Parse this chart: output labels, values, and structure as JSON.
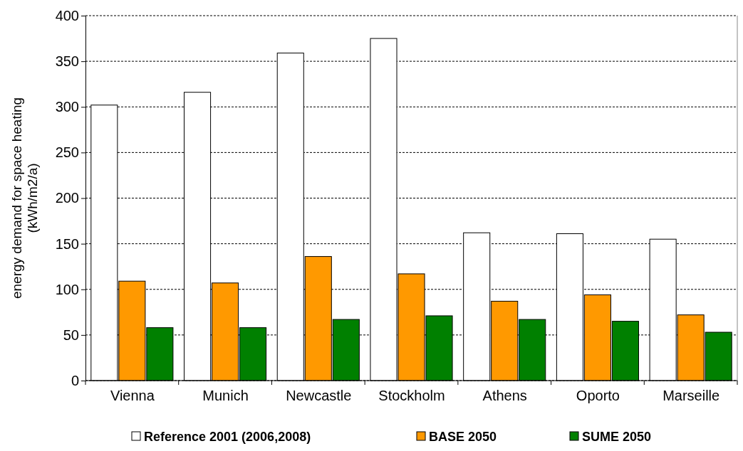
{
  "chart_data": {
    "type": "bar",
    "ylabel": "energy demand for space heating\n(kWh/m2/a)",
    "categories": [
      "Vienna",
      "Munich",
      "Newcastle",
      "Stockholm",
      "Athens",
      "Oporto",
      "Marseille"
    ],
    "series": [
      {
        "name": "Reference 2001 (2006,2008)",
        "color": "#ffffff",
        "values": [
          302,
          316,
          359,
          375,
          162,
          161,
          155
        ]
      },
      {
        "name": "BASE 2050",
        "color": "#ff9900",
        "values": [
          109,
          107,
          136,
          117,
          87,
          94,
          72
        ]
      },
      {
        "name": "SUME 2050",
        "color": "#008000",
        "values": [
          58,
          58,
          67,
          71,
          67,
          65,
          53
        ]
      }
    ],
    "ylim": [
      0,
      400
    ],
    "yticks": [
      0,
      50,
      100,
      150,
      200,
      250,
      300,
      350,
      400
    ],
    "grid": "y",
    "legend": "bottom"
  }
}
